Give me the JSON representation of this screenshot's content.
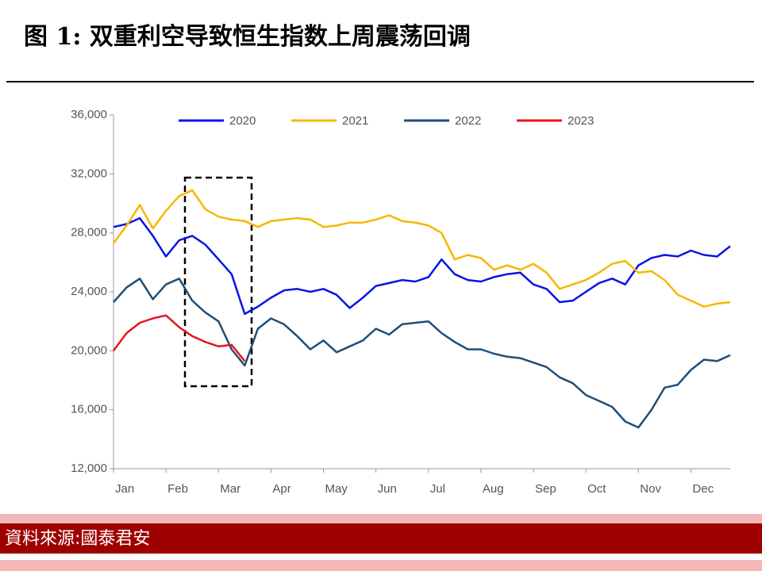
{
  "chart_data": {
    "type": "line",
    "title": "图 1: 双重利空导致恒生指数上周震荡回调",
    "source": "資料來源:國泰君安",
    "categories": [
      "Jan",
      null,
      null,
      null,
      "Feb",
      null,
      null,
      null,
      "Mar",
      null,
      null,
      null,
      "Apr",
      null,
      null,
      null,
      "May",
      null,
      null,
      null,
      "Jun",
      null,
      null,
      null,
      "Jul",
      null,
      null,
      null,
      "Aug",
      null,
      null,
      null,
      "Sep",
      null,
      null,
      null,
      "Oct",
      null,
      null,
      null,
      "Nov",
      null,
      null,
      null,
      "Dec",
      null,
      null,
      null
    ],
    "series": [
      {
        "name": "2020",
        "color": "#0a14e6",
        "values": [
          28400,
          28600,
          29000,
          27800,
          26400,
          27500,
          27800,
          27200,
          26200,
          25200,
          22500,
          23000,
          23600,
          24100,
          24200,
          24000,
          24200,
          23800,
          22900,
          23600,
          24400,
          24600,
          24800,
          24700,
          25000,
          26200,
          25200,
          24800,
          24700,
          25000,
          25200,
          25300,
          24500,
          24200,
          23300,
          23400,
          24000,
          24600,
          24900,
          24500,
          25800,
          26300,
          26500,
          26400,
          26800,
          26500,
          26400,
          27100
        ]
      },
      {
        "name": "2021",
        "color": "#f5b800",
        "values": [
          27300,
          28500,
          29900,
          28300,
          29500,
          30500,
          30900,
          29600,
          29100,
          28900,
          28800,
          28400,
          28800,
          28900,
          29000,
          28900,
          28400,
          28500,
          28700,
          28700,
          28900,
          29200,
          28800,
          28700,
          28500,
          28000,
          26200,
          26500,
          26300,
          25500,
          25800,
          25500,
          25900,
          25300,
          24200,
          24500,
          24800,
          25300,
          25900,
          26100,
          25300,
          25400,
          24800,
          23800,
          23400,
          23000,
          23200,
          23300
        ]
      },
      {
        "name": "2022",
        "color": "#1f4e79",
        "values": [
          23300,
          24300,
          24900,
          23500,
          24500,
          24900,
          23400,
          22600,
          22000,
          20100,
          19000,
          21500,
          22200,
          21800,
          21000,
          20100,
          20700,
          19900,
          20300,
          20700,
          21500,
          21100,
          21800,
          21900,
          22000,
          21200,
          20600,
          20100,
          20100,
          19800,
          19600,
          19500,
          19200,
          18900,
          18200,
          17800,
          17000,
          16600,
          16200,
          15200,
          14800,
          16000,
          17500,
          17700,
          18700,
          19400,
          19300,
          19700
        ]
      },
      {
        "name": "2023",
        "color": "#e8141e",
        "values": [
          20000,
          21200,
          21900,
          22200,
          22400,
          21600,
          21000,
          20600,
          20300,
          20400,
          19300,
          null,
          null,
          null,
          null,
          null,
          null,
          null,
          null,
          null,
          null,
          null,
          null,
          null,
          null,
          null,
          null,
          null,
          null,
          null,
          null,
          null,
          null,
          null,
          null,
          null,
          null,
          null,
          null,
          null,
          null,
          null,
          null,
          null,
          null,
          null,
          null,
          null
        ]
      }
    ],
    "ylim": [
      12000,
      36000
    ],
    "yticks": [
      {
        "value": 12000,
        "label": "12,000"
      },
      {
        "value": 16000,
        "label": "16,000"
      },
      {
        "value": 20000,
        "label": "20,000"
      },
      {
        "value": 24000,
        "label": "24,000"
      },
      {
        "value": 28000,
        "label": "28,000"
      },
      {
        "value": 32000,
        "label": "32,000"
      },
      {
        "value": 36000,
        "label": "36,000"
      }
    ],
    "grid": false
  }
}
